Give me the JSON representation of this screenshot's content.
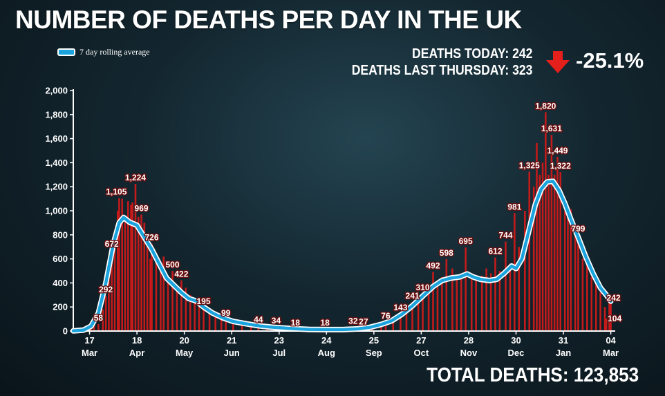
{
  "header": {
    "title": "NUMBER OF DEATHS PER DAY IN THE UK",
    "legend_label": "7 day rolling average",
    "deaths_today": "DEATHS TODAY: 242",
    "deaths_last_thursday": "DEATHS LAST THURSDAY: 323",
    "change": "-25.1%",
    "change_icon": "down-arrow-icon",
    "total_deaths": "TOTAL DEATHS: 123,853"
  },
  "colors": {
    "bar": "#c41a1a",
    "line": "#1aa3dc",
    "line_outline": "#ffffff",
    "arrow": "#e3201b"
  },
  "chart_data": {
    "type": "bar",
    "title": "NUMBER OF DEATHS PER DAY IN THE UK",
    "xlabel": "",
    "ylabel": "",
    "ylim": [
      0,
      2000
    ],
    "y_ticks": [
      0,
      200,
      400,
      600,
      800,
      1000,
      1200,
      1400,
      1600,
      1800,
      2000
    ],
    "y_tick_labels": [
      "0",
      "200",
      "400",
      "600",
      "800",
      "1,000",
      "1,200",
      "1,400",
      "1,600",
      "1,800",
      "2,000"
    ],
    "x_ticks": [
      {
        "date": "2020-03-17",
        "day": "17",
        "month": "Mar"
      },
      {
        "date": "2020-04-18",
        "day": "18",
        "month": "Apr"
      },
      {
        "date": "2020-05-20",
        "day": "20",
        "month": "May"
      },
      {
        "date": "2020-06-21",
        "day": "21",
        "month": "Jun"
      },
      {
        "date": "2020-07-23",
        "day": "23",
        "month": "Jul"
      },
      {
        "date": "2020-08-24",
        "day": "24",
        "month": "Aug"
      },
      {
        "date": "2020-09-25",
        "day": "25",
        "month": "Sep"
      },
      {
        "date": "2020-10-27",
        "day": "27",
        "month": "Oct"
      },
      {
        "date": "2020-11-28",
        "day": "28",
        "month": "Nov"
      },
      {
        "date": "2020-12-30",
        "day": "30",
        "month": "Dec"
      },
      {
        "date": "2021-01-31",
        "day": "31",
        "month": "Jan"
      },
      {
        "date": "2021-03-04",
        "day": "04",
        "month": "Mar"
      }
    ],
    "series": [
      {
        "name": "7 day rolling average",
        "type": "line",
        "points": [
          [
            "2020-03-06",
            2
          ],
          [
            "2020-03-13",
            8
          ],
          [
            "2020-03-18",
            40
          ],
          [
            "2020-03-23",
            150
          ],
          [
            "2020-03-28",
            400
          ],
          [
            "2020-04-02",
            720
          ],
          [
            "2020-04-06",
            900
          ],
          [
            "2020-04-09",
            945
          ],
          [
            "2020-04-13",
            905
          ],
          [
            "2020-04-18",
            880
          ],
          [
            "2020-04-23",
            780
          ],
          [
            "2020-04-28",
            680
          ],
          [
            "2020-05-03",
            560
          ],
          [
            "2020-05-08",
            440
          ],
          [
            "2020-05-13",
            380
          ],
          [
            "2020-05-18",
            320
          ],
          [
            "2020-05-23",
            270
          ],
          [
            "2020-05-28",
            250
          ],
          [
            "2020-06-02",
            200
          ],
          [
            "2020-06-08",
            150
          ],
          [
            "2020-06-15",
            110
          ],
          [
            "2020-06-22",
            80
          ],
          [
            "2020-07-01",
            60
          ],
          [
            "2020-07-10",
            42
          ],
          [
            "2020-07-20",
            30
          ],
          [
            "2020-08-01",
            20
          ],
          [
            "2020-08-12",
            14
          ],
          [
            "2020-08-24",
            12
          ],
          [
            "2020-09-04",
            12
          ],
          [
            "2020-09-14",
            18
          ],
          [
            "2020-09-22",
            30
          ],
          [
            "2020-09-30",
            55
          ],
          [
            "2020-10-07",
            85
          ],
          [
            "2020-10-14",
            140
          ],
          [
            "2020-10-21",
            210
          ],
          [
            "2020-10-28",
            290
          ],
          [
            "2020-11-04",
            370
          ],
          [
            "2020-11-10",
            420
          ],
          [
            "2020-11-16",
            440
          ],
          [
            "2020-11-22",
            450
          ],
          [
            "2020-11-27",
            475
          ],
          [
            "2020-12-01",
            450
          ],
          [
            "2020-12-06",
            430
          ],
          [
            "2020-12-12",
            420
          ],
          [
            "2020-12-17",
            430
          ],
          [
            "2020-12-22",
            480
          ],
          [
            "2020-12-27",
            540
          ],
          [
            "2020-12-30",
            520
          ],
          [
            "2021-01-03",
            600
          ],
          [
            "2021-01-07",
            800
          ],
          [
            "2021-01-12",
            1050
          ],
          [
            "2021-01-16",
            1180
          ],
          [
            "2021-01-20",
            1240
          ],
          [
            "2021-01-24",
            1245
          ],
          [
            "2021-01-28",
            1170
          ],
          [
            "2021-02-01",
            1060
          ],
          [
            "2021-02-05",
            930
          ],
          [
            "2021-02-10",
            780
          ],
          [
            "2021-02-15",
            620
          ],
          [
            "2021-02-20",
            480
          ],
          [
            "2021-02-25",
            360
          ],
          [
            "2021-03-01",
            300
          ],
          [
            "2021-03-04",
            248
          ]
        ]
      },
      {
        "name": "",
        "type": "bar",
        "values": [
          [
            "2020-03-06",
            1
          ],
          [
            "2020-03-14",
            10
          ],
          [
            "2020-03-18",
            30
          ],
          [
            "2020-03-20",
            45
          ],
          [
            "2020-03-23",
            58
          ],
          [
            "2020-03-26",
            180
          ],
          [
            "2020-03-28",
            292
          ],
          [
            "2020-03-30",
            470
          ],
          [
            "2020-04-01",
            672
          ],
          [
            "2020-04-03",
            700
          ],
          [
            "2020-04-05",
            1000
          ],
          [
            "2020-04-06",
            1105
          ],
          [
            "2020-04-08",
            1100
          ],
          [
            "2020-04-10",
            950
          ],
          [
            "2020-04-12",
            1080
          ],
          [
            "2020-04-14",
            1050
          ],
          [
            "2020-04-15",
            1070
          ],
          [
            "2020-04-17",
            1224
          ],
          [
            "2020-04-19",
            950
          ],
          [
            "2020-04-21",
            969
          ],
          [
            "2020-04-23",
            900
          ],
          [
            "2020-04-25",
            800
          ],
          [
            "2020-04-27",
            600
          ],
          [
            "2020-04-28",
            726
          ],
          [
            "2020-05-01",
            650
          ],
          [
            "2020-05-04",
            550
          ],
          [
            "2020-05-06",
            620
          ],
          [
            "2020-05-09",
            420
          ],
          [
            "2020-05-12",
            500
          ],
          [
            "2020-05-15",
            380
          ],
          [
            "2020-05-18",
            422
          ],
          [
            "2020-05-21",
            360
          ],
          [
            "2020-05-24",
            300
          ],
          [
            "2020-05-27",
            250
          ],
          [
            "2020-05-30",
            240
          ],
          [
            "2020-06-02",
            195
          ],
          [
            "2020-06-06",
            170
          ],
          [
            "2020-06-10",
            140
          ],
          [
            "2020-06-14",
            120
          ],
          [
            "2020-06-17",
            99
          ],
          [
            "2020-06-22",
            80
          ],
          [
            "2020-06-28",
            70
          ],
          [
            "2020-07-04",
            60
          ],
          [
            "2020-07-09",
            44
          ],
          [
            "2020-07-15",
            38
          ],
          [
            "2020-07-21",
            34
          ],
          [
            "2020-07-27",
            25
          ],
          [
            "2020-08-03",
            18
          ],
          [
            "2020-08-10",
            14
          ],
          [
            "2020-08-17",
            12
          ],
          [
            "2020-08-23",
            18
          ],
          [
            "2020-08-30",
            10
          ],
          [
            "2020-09-06",
            14
          ],
          [
            "2020-09-11",
            32
          ],
          [
            "2020-09-18",
            27
          ],
          [
            "2020-09-24",
            30
          ],
          [
            "2020-09-30",
            60
          ],
          [
            "2020-10-03",
            76
          ],
          [
            "2020-10-08",
            100
          ],
          [
            "2020-10-13",
            143
          ],
          [
            "2020-10-17",
            200
          ],
          [
            "2020-10-21",
            241
          ],
          [
            "2020-10-25",
            260
          ],
          [
            "2020-10-28",
            310
          ],
          [
            "2020-11-01",
            380
          ],
          [
            "2020-11-04",
            492
          ],
          [
            "2020-11-07",
            420
          ],
          [
            "2020-11-10",
            450
          ],
          [
            "2020-11-13",
            598
          ],
          [
            "2020-11-17",
            520
          ],
          [
            "2020-11-20",
            460
          ],
          [
            "2020-11-23",
            480
          ],
          [
            "2020-11-26",
            695
          ],
          [
            "2020-11-30",
            480
          ],
          [
            "2020-12-03",
            420
          ],
          [
            "2020-12-07",
            460
          ],
          [
            "2020-12-10",
            520
          ],
          [
            "2020-12-13",
            480
          ],
          [
            "2020-12-16",
            612
          ],
          [
            "2020-12-19",
            500
          ],
          [
            "2020-12-23",
            744
          ],
          [
            "2020-12-26",
            560
          ],
          [
            "2020-12-29",
            981
          ],
          [
            "2021-01-01",
            700
          ],
          [
            "2021-01-05",
            1000
          ],
          [
            "2021-01-08",
            1325
          ],
          [
            "2021-01-11",
            1200
          ],
          [
            "2021-01-13",
            1564
          ],
          [
            "2021-01-15",
            1300
          ],
          [
            "2021-01-17",
            1400
          ],
          [
            "2021-01-19",
            1820
          ],
          [
            "2021-01-21",
            1300
          ],
          [
            "2021-01-23",
            1631
          ],
          [
            "2021-01-25",
            1300
          ],
          [
            "2021-01-27",
            1449
          ],
          [
            "2021-01-29",
            1322
          ],
          [
            "2021-02-01",
            1000
          ],
          [
            "2021-02-03",
            1000
          ],
          [
            "2021-02-05",
            1014
          ],
          [
            "2021-02-08",
            800
          ],
          [
            "2021-02-10",
            799
          ],
          [
            "2021-02-13",
            600
          ],
          [
            "2021-02-16",
            620
          ],
          [
            "2021-02-19",
            450
          ],
          [
            "2021-02-22",
            420
          ],
          [
            "2021-02-25",
            320
          ],
          [
            "2021-02-28",
            200
          ],
          [
            "2021-03-01",
            104
          ],
          [
            "2021-03-03",
            300
          ],
          [
            "2021-03-04",
            242
          ]
        ]
      }
    ],
    "annotations": [
      {
        "label": "58",
        "date": "2020-03-23",
        "value": 58
      },
      {
        "label": "292",
        "date": "2020-03-28",
        "value": 292
      },
      {
        "label": "672",
        "date": "2020-04-01",
        "value": 672
      },
      {
        "label": "1,105",
        "date": "2020-04-06",
        "value": 1105
      },
      {
        "label": "1,224",
        "date": "2020-04-17",
        "value": 1224
      },
      {
        "label": "969",
        "date": "2020-04-21",
        "value": 969
      },
      {
        "label": "726",
        "date": "2020-04-28",
        "value": 726
      },
      {
        "label": "500",
        "date": "2020-05-12",
        "value": 500
      },
      {
        "label": "422",
        "date": "2020-05-18",
        "value": 422
      },
      {
        "label": "195",
        "date": "2020-06-02",
        "value": 195
      },
      {
        "label": "99",
        "date": "2020-06-17",
        "value": 99
      },
      {
        "label": "44",
        "date": "2020-07-09",
        "value": 44
      },
      {
        "label": "34",
        "date": "2020-07-21",
        "value": 34
      },
      {
        "label": "18",
        "date": "2020-08-03",
        "value": 18
      },
      {
        "label": "18",
        "date": "2020-08-23",
        "value": 18
      },
      {
        "label": "32",
        "date": "2020-09-11",
        "value": 32
      },
      {
        "label": "27",
        "date": "2020-09-18",
        "value": 27
      },
      {
        "label": "76",
        "date": "2020-10-03",
        "value": 76
      },
      {
        "label": "143",
        "date": "2020-10-13",
        "value": 143
      },
      {
        "label": "241",
        "date": "2020-10-21",
        "value": 241
      },
      {
        "label": "310",
        "date": "2020-10-28",
        "value": 310
      },
      {
        "label": "492",
        "date": "2020-11-04",
        "value": 492
      },
      {
        "label": "598",
        "date": "2020-11-13",
        "value": 598
      },
      {
        "label": "695",
        "date": "2020-11-26",
        "value": 695
      },
      {
        "label": "612",
        "date": "2020-12-16",
        "value": 612
      },
      {
        "label": "744",
        "date": "2020-12-23",
        "value": 744
      },
      {
        "label": "981",
        "date": "2020-12-29",
        "value": 981
      },
      {
        "label": "1,325",
        "date": "2021-01-08",
        "value": 1325
      },
      {
        "label": "1,820",
        "date": "2021-01-19",
        "value": 1820
      },
      {
        "label": "1,631",
        "date": "2021-01-23",
        "value": 1631
      },
      {
        "label": "1,449",
        "date": "2021-01-27",
        "value": 1449
      },
      {
        "label": "1,322",
        "date": "2021-01-29",
        "value": 1322
      },
      {
        "label": "799",
        "date": "2021-02-10",
        "value": 799
      },
      {
        "label": "242",
        "date": "2021-03-04",
        "value": 242
      },
      {
        "label": "104",
        "date": "2021-03-01",
        "value": 104
      }
    ],
    "legend_position": "top-left",
    "grid": false
  }
}
